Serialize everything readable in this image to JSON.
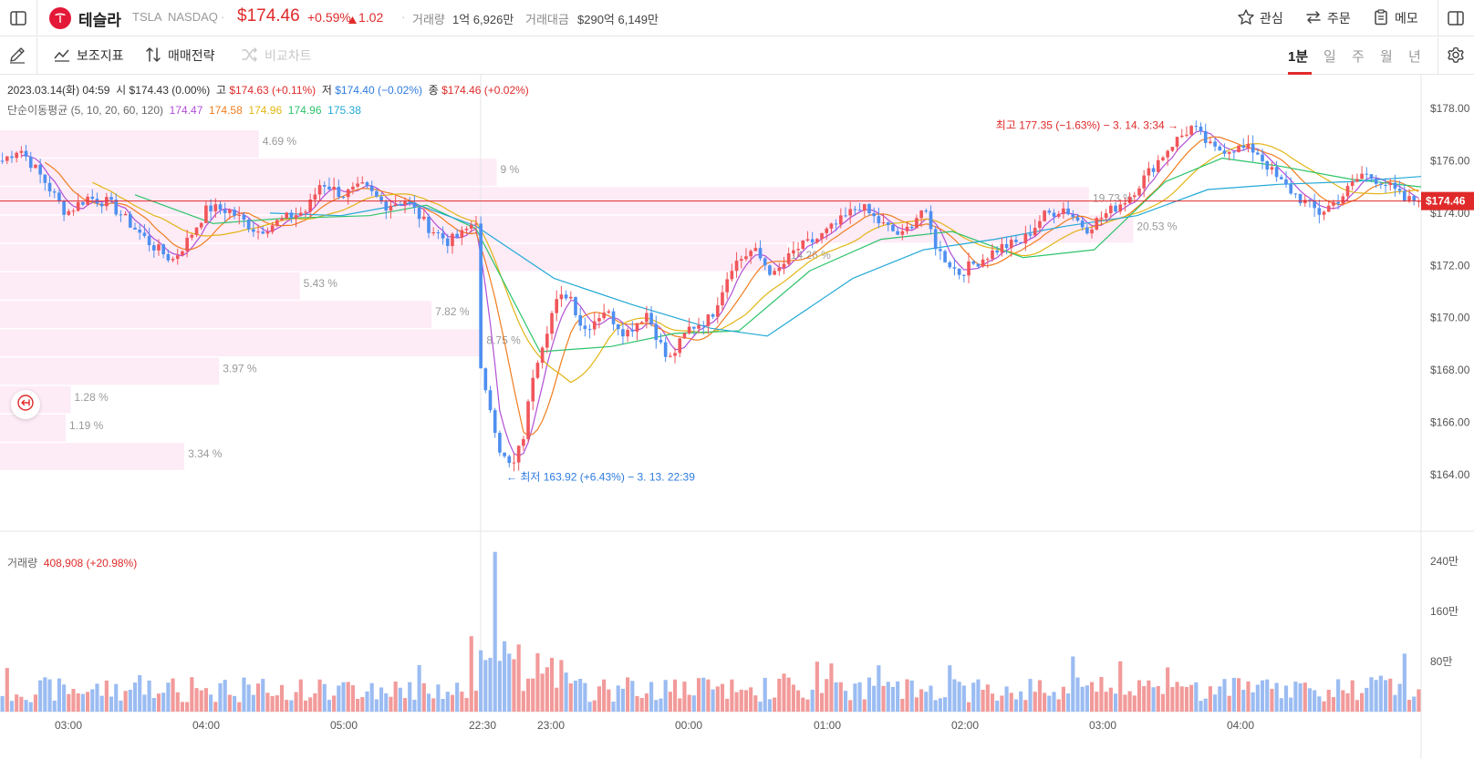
{
  "header": {
    "name": "테슬라",
    "symbol": "TSLA",
    "exchange": "NASDAQ",
    "price": "$174.46",
    "change_pct": "+0.59%",
    "change_abs": "1.02",
    "volume_label": "거래량",
    "volume_value": "1억 6,926만",
    "amount_label": "거래대금",
    "amount_value": "$290억 6,149만",
    "actions": {
      "watch": "관심",
      "order": "주문",
      "memo": "메모"
    }
  },
  "toolbar": {
    "indicators": "보조지표",
    "strategy": "매매전략",
    "compare": "비교차트",
    "periods": [
      "1분",
      "일",
      "주",
      "월",
      "년"
    ],
    "active_period": "1분"
  },
  "legend": {
    "date": "2023.03.14(화) 04:59",
    "open_label": "시",
    "open": "$174.43 (0.00%)",
    "high_label": "고",
    "high": "$174.63 (+0.11%)",
    "low_label": "저",
    "low": "$174.40 (−0.02%)",
    "close_label": "종",
    "close": "$174.46 (+0.02%)",
    "ma_label": "단순이동평균",
    "ma_params": "(5, 10, 20, 60, 120)",
    "ma_values": [
      "174.47",
      "174.58",
      "174.96",
      "174.96",
      "175.38"
    ],
    "ma_colors": [
      "#b24fd6",
      "#f07d1f",
      "#e2b514",
      "#2cc46a",
      "#22a9d6"
    ]
  },
  "chart_data": {
    "type": "candlestick",
    "price_ticks": [
      "$178.00",
      "$176.00",
      "$174.00",
      "$172.00",
      "$170.00",
      "$168.00",
      "$166.00",
      "$164.00"
    ],
    "price_range": [
      163.0,
      179.0
    ],
    "current_price": "$174.46",
    "current_price_value": 174.46,
    "high_annotation": "최고 177.35 (−1.63%) − 3. 14. 3:34 →",
    "low_annotation": "← 최저 163.92 (+6.43%) − 3. 13. 22:39",
    "volume_profile": [
      {
        "pct": "4.69 %",
        "length": 0.1821
      },
      {
        "pct": "9 %",
        "length": 0.3495
      },
      {
        "pct": "19.73 %",
        "length": 0.7663
      },
      {
        "pct": "20.53 %",
        "length": 0.7974
      },
      {
        "pct": "14.26 %",
        "length": 0.5538
      },
      {
        "pct": "5.43 %",
        "length": 0.2109
      },
      {
        "pct": "7.82 %",
        "length": 0.3037
      },
      {
        "pct": "8.75 %",
        "length": 0.3398
      },
      {
        "pct": "3.97 %",
        "length": 0.1542
      },
      {
        "pct": "1.28 %",
        "length": 0.0497
      },
      {
        "pct": "1.19 %",
        "length": 0.0462
      },
      {
        "pct": "3.34 %",
        "length": 0.1297
      }
    ],
    "time_labels": [
      "03:00",
      "04:00",
      "05:00",
      "22:30",
      "23:00",
      "00:00",
      "01:00",
      "02:00",
      "03:00",
      "04:00"
    ],
    "price_path": [
      [
        0,
        176.0
      ],
      [
        0.012,
        176.5
      ],
      [
        0.03,
        175.2
      ],
      [
        0.045,
        174.0
      ],
      [
        0.06,
        174.6
      ],
      [
        0.075,
        174.4
      ],
      [
        0.09,
        173.6
      ],
      [
        0.105,
        172.8
      ],
      [
        0.12,
        172.2
      ],
      [
        0.13,
        172.9
      ],
      [
        0.145,
        174.2
      ],
      [
        0.16,
        174.1
      ],
      [
        0.18,
        173.3
      ],
      [
        0.2,
        173.8
      ],
      [
        0.215,
        174.1
      ],
      [
        0.225,
        175.2
      ],
      [
        0.24,
        174.7
      ],
      [
        0.255,
        175.0
      ],
      [
        0.27,
        174.3
      ],
      [
        0.285,
        174.5
      ],
      [
        0.3,
        173.5
      ],
      [
        0.315,
        172.9
      ],
      [
        0.325,
        173.2
      ],
      [
        0.335,
        173.8
      ],
      [
        0.338,
        167.5
      ],
      [
        0.345,
        166.5
      ],
      [
        0.352,
        164.8
      ],
      [
        0.36,
        164.2
      ],
      [
        0.368,
        165.5
      ],
      [
        0.375,
        168.0
      ],
      [
        0.39,
        170.5
      ],
      [
        0.4,
        171.0
      ],
      [
        0.41,
        169.5
      ],
      [
        0.425,
        170.3
      ],
      [
        0.44,
        169.4
      ],
      [
        0.455,
        170.2
      ],
      [
        0.47,
        168.3
      ],
      [
        0.485,
        169.6
      ],
      [
        0.5,
        170.0
      ],
      [
        0.515,
        172.0
      ],
      [
        0.53,
        172.6
      ],
      [
        0.545,
        171.6
      ],
      [
        0.56,
        172.6
      ],
      [
        0.575,
        173.0
      ],
      [
        0.59,
        173.6
      ],
      [
        0.605,
        174.3
      ],
      [
        0.62,
        173.6
      ],
      [
        0.635,
        173.1
      ],
      [
        0.65,
        174.2
      ],
      [
        0.66,
        172.6
      ],
      [
        0.675,
        171.7
      ],
      [
        0.69,
        172.2
      ],
      [
        0.705,
        172.7
      ],
      [
        0.72,
        172.9
      ],
      [
        0.735,
        173.9
      ],
      [
        0.75,
        174.2
      ],
      [
        0.765,
        173.4
      ],
      [
        0.78,
        174.0
      ],
      [
        0.795,
        174.6
      ],
      [
        0.81,
        175.6
      ],
      [
        0.825,
        176.6
      ],
      [
        0.84,
        177.3
      ],
      [
        0.855,
        176.4
      ],
      [
        0.87,
        176.5
      ],
      [
        0.885,
        176.4
      ],
      [
        0.9,
        175.3
      ],
      [
        0.915,
        174.6
      ],
      [
        0.93,
        174.0
      ],
      [
        0.945,
        174.6
      ],
      [
        0.96,
        175.5
      ],
      [
        0.975,
        175.2
      ],
      [
        0.99,
        174.5
      ],
      [
        1.0,
        174.46
      ]
    ],
    "ma_paths": {
      "ma60": [
        [
          0.095,
          174.7
        ],
        [
          0.15,
          173.6
        ],
        [
          0.2,
          173.8
        ],
        [
          0.26,
          173.9
        ],
        [
          0.3,
          174.3
        ],
        [
          0.335,
          173.4
        ],
        [
          0.38,
          168.7
        ],
        [
          0.43,
          168.9
        ],
        [
          0.475,
          169.4
        ],
        [
          0.52,
          169.5
        ],
        [
          0.57,
          171.8
        ],
        [
          0.62,
          173.0
        ],
        [
          0.67,
          173.3
        ],
        [
          0.72,
          172.3
        ],
        [
          0.77,
          172.6
        ],
        [
          0.82,
          175.2
        ],
        [
          0.86,
          176.1
        ],
        [
          0.9,
          175.8
        ],
        [
          0.95,
          175.3
        ],
        [
          1.0,
          175.0
        ]
      ],
      "ma120": [
        [
          0.19,
          174.0
        ],
        [
          0.24,
          173.9
        ],
        [
          0.29,
          174.4
        ],
        [
          0.335,
          173.5
        ],
        [
          0.39,
          171.5
        ],
        [
          0.445,
          170.5
        ],
        [
          0.5,
          169.6
        ],
        [
          0.54,
          169.3
        ],
        [
          0.6,
          171.5
        ],
        [
          0.65,
          172.6
        ],
        [
          0.7,
          173.0
        ],
        [
          0.75,
          173.5
        ],
        [
          0.8,
          173.9
        ],
        [
          0.85,
          174.9
        ],
        [
          0.9,
          175.1
        ],
        [
          0.95,
          175.2
        ],
        [
          1.0,
          175.4
        ]
      ]
    },
    "volume_ticks": [
      "240만",
      "160만",
      "80만"
    ],
    "volume_range": [
      0,
      2600000
    ],
    "volume_seed": 7,
    "series_colors": {
      "up": "#f0565b",
      "down": "#4e8ff0",
      "up_volume": "#f29a9a",
      "down_volume": "#9bbcf2"
    }
  },
  "volume_legend": {
    "label": "거래량",
    "value": "408,908 (+20.98%)"
  }
}
